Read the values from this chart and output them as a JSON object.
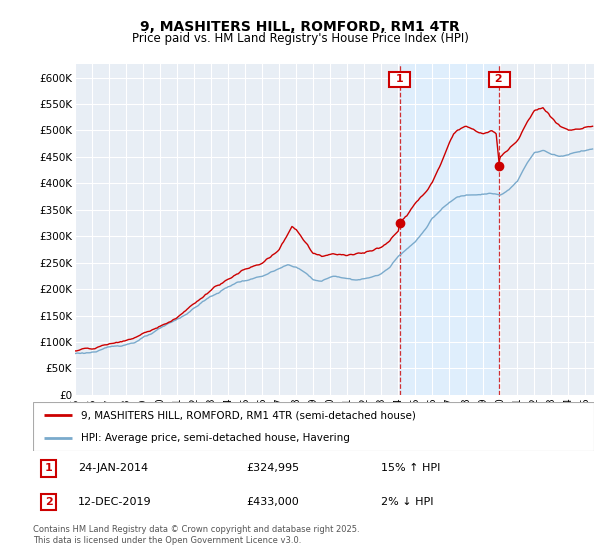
{
  "title": "9, MASHITERS HILL, ROMFORD, RM1 4TR",
  "subtitle": "Price paid vs. HM Land Registry's House Price Index (HPI)",
  "ylabel_ticks": [
    "£0",
    "£50K",
    "£100K",
    "£150K",
    "£200K",
    "£250K",
    "£300K",
    "£350K",
    "£400K",
    "£450K",
    "£500K",
    "£550K",
    "£600K"
  ],
  "ytick_values": [
    0,
    50000,
    100000,
    150000,
    200000,
    250000,
    300000,
    350000,
    400000,
    450000,
    500000,
    550000,
    600000
  ],
  "ylim": [
    0,
    625000
  ],
  "legend1": "9, MASHITERS HILL, ROMFORD, RM1 4TR (semi-detached house)",
  "legend2": "HPI: Average price, semi-detached house, Havering",
  "annotation1_date": "24-JAN-2014",
  "annotation1_price": "£324,995",
  "annotation1_hpi": "15% ↑ HPI",
  "annotation2_date": "12-DEC-2019",
  "annotation2_price": "£433,000",
  "annotation2_hpi": "2% ↓ HPI",
  "footer": "Contains HM Land Registry data © Crown copyright and database right 2025.\nThis data is licensed under the Open Government Licence v3.0.",
  "line1_color": "#cc0000",
  "line2_color": "#7aaacc",
  "fill2_color": "#daeaf5",
  "marker_color": "#cc0000",
  "vline_color": "#cc0000",
  "annotation_box_color": "#cc0000",
  "shade_color": "#ddeeff",
  "point1_x": 2014.07,
  "point1_y": 324995,
  "point2_x": 2019.92,
  "point2_y": 433000,
  "shade_xmin": 2014.07,
  "shade_xmax": 2019.92,
  "xlim_min": 1995.0,
  "xlim_max": 2025.5,
  "xtick_years": [
    1995,
    1996,
    1997,
    1998,
    1999,
    2000,
    2001,
    2002,
    2003,
    2004,
    2005,
    2006,
    2007,
    2008,
    2009,
    2010,
    2011,
    2012,
    2013,
    2014,
    2015,
    2016,
    2017,
    2018,
    2019,
    2020,
    2021,
    2022,
    2023,
    2024,
    2025
  ],
  "bg_color": "#e8eef5",
  "grid_color": "#ffffff"
}
